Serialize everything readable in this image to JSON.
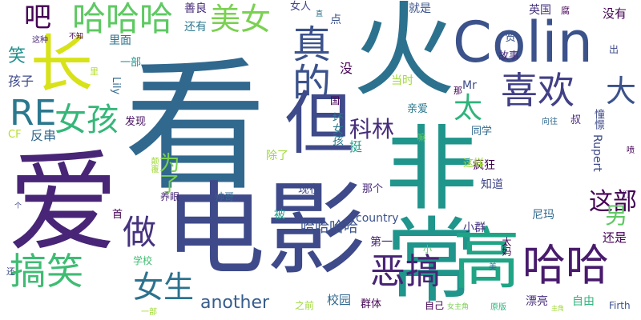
{
  "words": [
    {
      "text": "看",
      "color": "#31688e"
    },
    {
      "text": "爱",
      "color": "#482576"
    },
    {
      "text": "电影",
      "color": "#3e4a89"
    },
    {
      "text": "非常",
      "color": "#1f958b"
    },
    {
      "text": "火",
      "color": "#2c728e"
    },
    {
      "text": "Colin",
      "color": "#3b528b"
    },
    {
      "text": "真的",
      "color": "#3b528b"
    },
    {
      "text": "喜欢",
      "color": "#424086"
    },
    {
      "text": "哈哈哈",
      "color": "#5ec962"
    },
    {
      "text": "美女",
      "color": "#7ad151"
    },
    {
      "text": "吧",
      "color": "#440154"
    },
    {
      "text": "长",
      "color": "#d8e219"
    },
    {
      "text": "RE",
      "color": "#2a788e"
    },
    {
      "text": "女孩",
      "color": "#35b779"
    },
    {
      "text": "但",
      "color": "#3e4a89"
    },
    {
      "text": "大",
      "color": "#3b528b"
    },
    {
      "text": "太",
      "color": "#2fb47c"
    },
    {
      "text": "科林",
      "color": "#472d7b"
    },
    {
      "text": "高",
      "color": "#20a486"
    },
    {
      "text": "哈哈",
      "color": "#481a6c"
    },
    {
      "text": "恶搞",
      "color": "#482475"
    },
    {
      "text": "搞笑",
      "color": "#3fbc73"
    },
    {
      "text": "女生",
      "color": "#2c728e"
    },
    {
      "text": "做",
      "color": "#46327e"
    },
    {
      "text": "这部",
      "color": "#440154"
    },
    {
      "text": "哈哈哈哈",
      "color": "#3b528b"
    },
    {
      "text": "another",
      "color": "#365c8d"
    },
    {
      "text": "笑",
      "color": "#21918c"
    },
    {
      "text": "孩子",
      "color": "#3e4a89"
    },
    {
      "text": "为了",
      "color": "#7ad151"
    },
    {
      "text": "另",
      "color": "#5ec962"
    },
    {
      "text": "善良",
      "color": "#472d7b"
    },
    {
      "text": "女人",
      "color": "#414487"
    },
    {
      "text": "还有",
      "color": "#2a788e"
    },
    {
      "text": "就是",
      "color": "#3b528b"
    },
    {
      "text": "英国",
      "color": "#46327e"
    },
    {
      "text": "没有",
      "color": "#440154"
    },
    {
      "text": "点",
      "color": "#3b528b"
    },
    {
      "text": "里面",
      "color": "#2c728e"
    },
    {
      "text": "一部",
      "color": "#21918c"
    },
    {
      "text": "Lily",
      "color": "#31688e"
    },
    {
      "text": "Mr",
      "color": "#3e4a89"
    },
    {
      "text": "没",
      "color": "#440154"
    },
    {
      "text": "发现",
      "color": "#471063"
    },
    {
      "text": "反串",
      "color": "#31688e"
    },
    {
      "text": "CF",
      "color": "#b5de2b"
    },
    {
      "text": "坏女孩",
      "color": "#2a788e"
    },
    {
      "text": "挺",
      "color": "#1f9e89"
    },
    {
      "text": "现在",
      "color": "#3e4a89"
    },
    {
      "text": "那个",
      "color": "#482878"
    },
    {
      "text": "country",
      "color": "#3b528b"
    },
    {
      "text": "知道",
      "color": "#404688"
    },
    {
      "text": "疯狂",
      "color": "#440154"
    },
    {
      "text": "同学",
      "color": "#31688e"
    },
    {
      "text": "这样",
      "color": "#a0da39"
    },
    {
      "text": "亲爱",
      "color": "#2a788e"
    },
    {
      "text": "当时",
      "color": "#a0da39"
    },
    {
      "text": "除了",
      "color": "#a0da39"
    },
    {
      "text": "养眼",
      "color": "#482878"
    },
    {
      "text": "帅哥",
      "color": "#31688e"
    },
    {
      "text": "被",
      "color": "#1f9e89"
    },
    {
      "text": "第一",
      "color": "#482475"
    },
    {
      "text": "首",
      "color": "#440154"
    },
    {
      "text": "学校",
      "color": "#3fbc73"
    },
    {
      "text": "小群",
      "color": "#46327e"
    },
    {
      "text": "尼玛",
      "color": "#31688e"
    },
    {
      "text": "还是",
      "color": "#440154"
    },
    {
      "text": "之前",
      "color": "#a0da39"
    },
    {
      "text": "校园",
      "color": "#31688e"
    },
    {
      "text": "群体",
      "color": "#440154"
    },
    {
      "text": "自己",
      "color": "#440154"
    },
    {
      "text": "漂亮",
      "color": "#472d7b"
    },
    {
      "text": "自由",
      "color": "#2fb47c"
    },
    {
      "text": "Firth",
      "color": "#3b528b"
    },
    {
      "text": "Rupert",
      "color": "#3e4a89"
    },
    {
      "text": "故事",
      "color": "#472d7b"
    },
    {
      "text": "赞",
      "color": "#3b528b"
    },
    {
      "text": "出",
      "color": "#3e4a89"
    },
    {
      "text": "叔",
      "color": "#482878"
    },
    {
      "text": "喷",
      "color": "#440154"
    },
    {
      "text": "这种",
      "color": "#482878"
    },
    {
      "text": "不知",
      "color": "#440154"
    },
    {
      "text": "国",
      "color": "#440154"
    },
    {
      "text": "那",
      "color": "#440154"
    },
    {
      "text": "直",
      "color": "#2c728e"
    },
    {
      "text": "里",
      "color": "#b5de2b"
    },
    {
      "text": "还",
      "color": "#3e4a89"
    },
    {
      "text": "小",
      "color": "#5ec962"
    },
    {
      "text": "个",
      "color": "#3e4a89"
    },
    {
      "text": "太妈",
      "color": "#440154"
    },
    {
      "text": "向往",
      "color": "#31688e"
    },
    {
      "text": "腐",
      "color": "#440154"
    },
    {
      "text": "们",
      "color": "#481a6c"
    },
    {
      "text": "原版",
      "color": "#2fb47c"
    },
    {
      "text": "女主角",
      "color": "#7ad151"
    },
    {
      "text": "主角",
      "color": "#a0da39"
    },
    {
      "text": "憧憬",
      "color": "#3e4a89"
    },
    {
      "text": "嘛",
      "color": "#5ec962"
    },
    {
      "text": "颠覆",
      "color": "#a0da39"
    },
    {
      "text": "美",
      "color": "#31688e"
    },
    {
      "text": "一部",
      "color": "#a0da39"
    }
  ]
}
